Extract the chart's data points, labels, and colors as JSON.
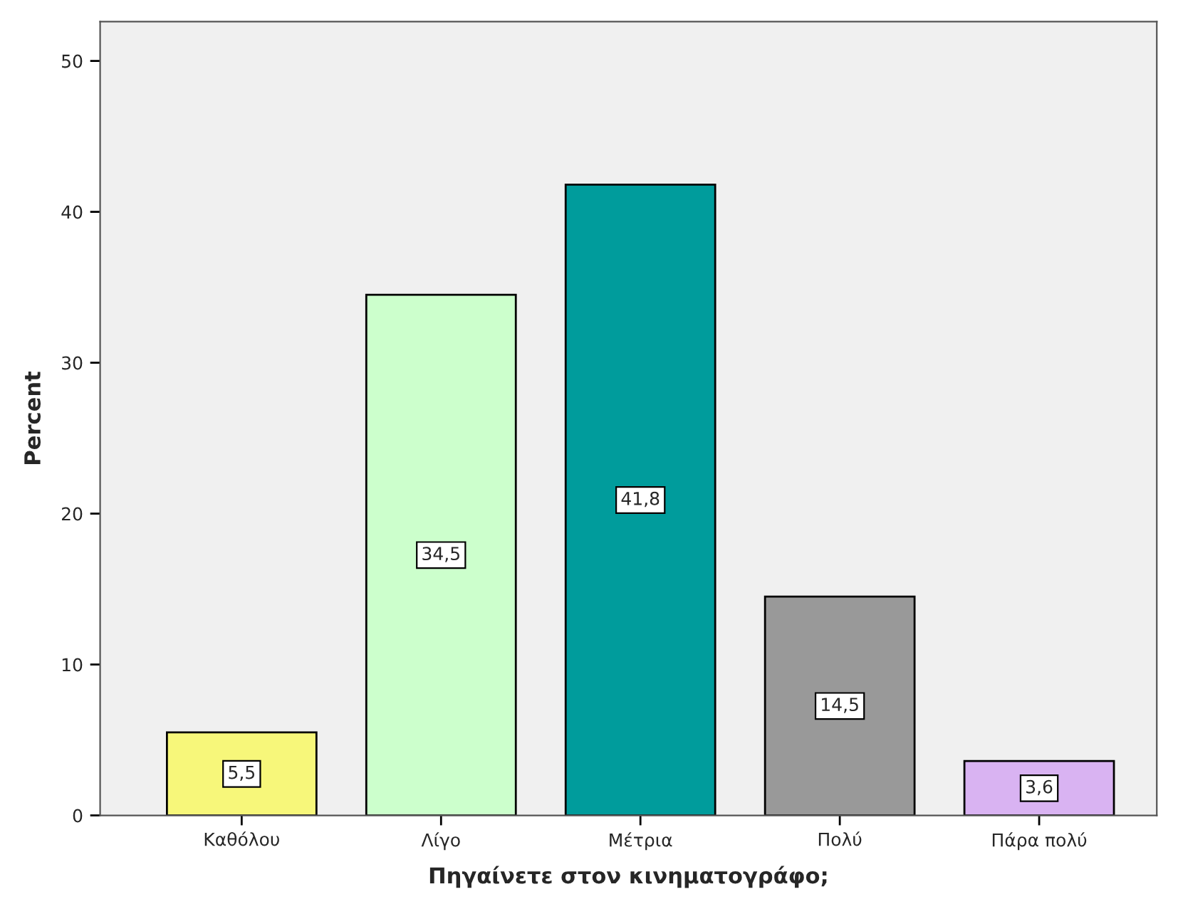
{
  "chart_data": {
    "type": "bar",
    "xlabel": "Πηγαίνετε στον κινηματογράφο;",
    "ylabel": "Percent",
    "categories": [
      "Καθόλου",
      "Λίγο",
      "Μέτρια",
      "Πολύ",
      "Πάρα πολύ"
    ],
    "values": [
      5.5,
      34.5,
      41.8,
      14.5,
      3.6
    ],
    "value_labels": [
      "5,5",
      "34,5",
      "41,8",
      "14,5",
      "3,6"
    ],
    "colors": [
      "#f7f77a",
      "#ccffcc",
      "#009c9c",
      "#999999",
      "#d9b3f2"
    ],
    "ylim": [
      0,
      52.6
    ],
    "yticks": [
      0,
      10,
      20,
      30,
      40,
      50
    ],
    "grid": false,
    "legend": false
  }
}
